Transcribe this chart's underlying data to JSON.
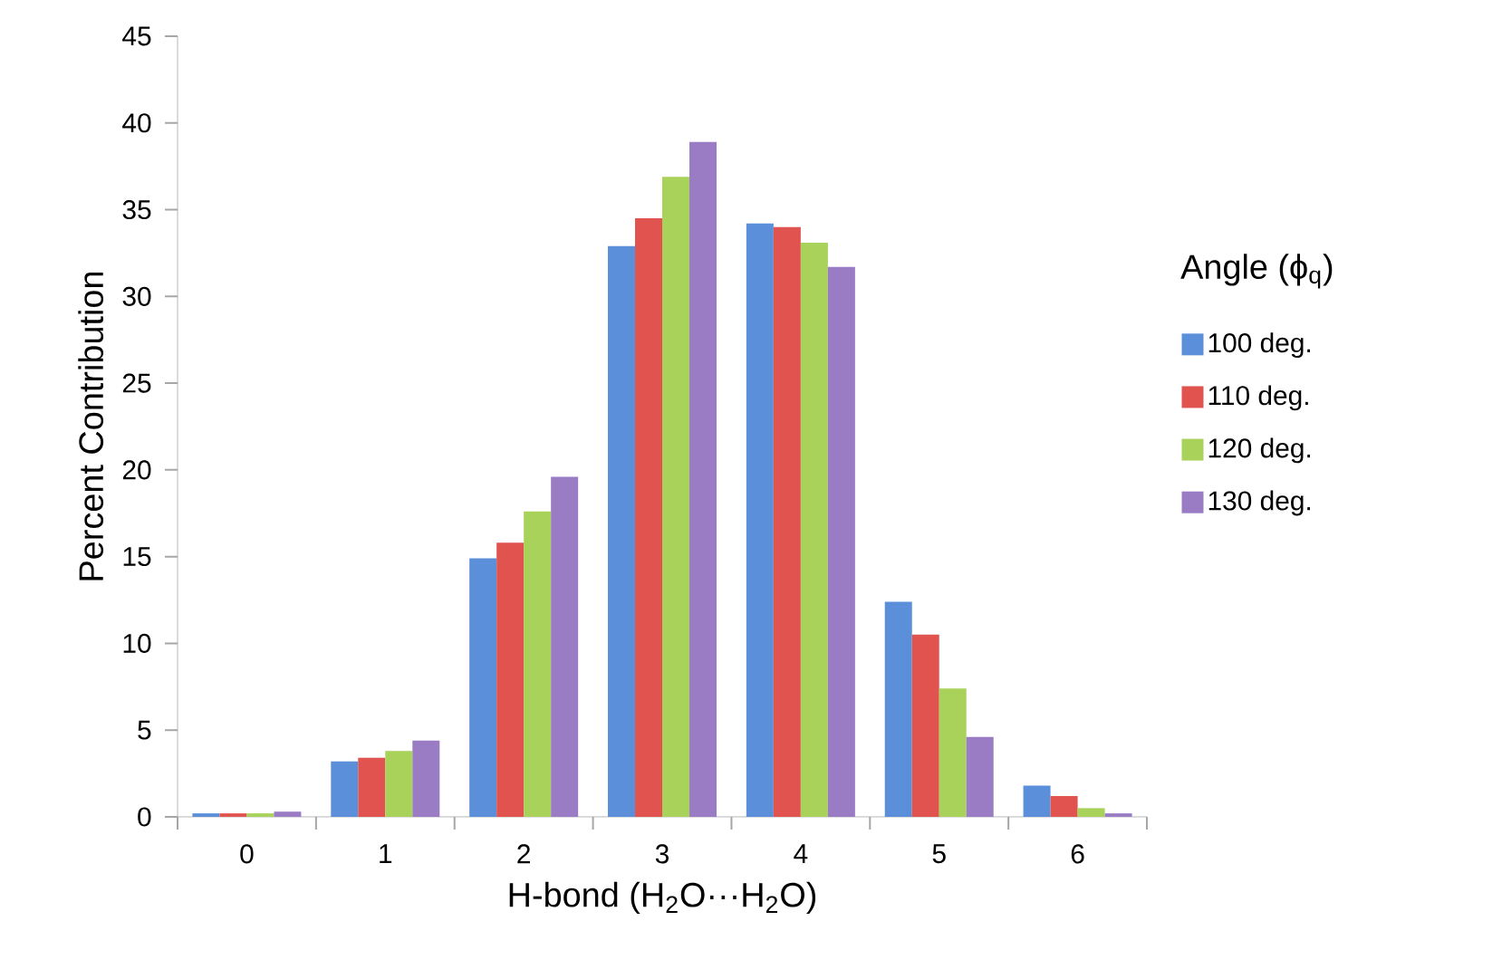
{
  "chart_data": {
    "type": "bar",
    "xlabel": "H-bond (H$_{2}$O···H$_{2}$O)",
    "ylabel": "Percent Contribution",
    "legend_title": "Angle (ϕ$_{q}$)",
    "categories": [
      "0",
      "1",
      "2",
      "3",
      "4",
      "5",
      "6"
    ],
    "series": [
      {
        "name": "100 deg.",
        "color": "#5b8fd9",
        "values": [
          0.2,
          3.2,
          14.9,
          32.9,
          34.2,
          12.4,
          1.8
        ]
      },
      {
        "name": "110 deg.",
        "color": "#e0534f",
        "values": [
          0.2,
          3.4,
          15.8,
          34.5,
          34.0,
          10.5,
          1.2
        ]
      },
      {
        "name": "120 deg.",
        "color": "#a8d25a",
        "values": [
          0.2,
          3.8,
          17.6,
          36.9,
          33.1,
          7.4,
          0.5
        ]
      },
      {
        "name": "130 deg.",
        "color": "#9a7cc4",
        "values": [
          0.3,
          4.4,
          19.6,
          38.9,
          31.7,
          4.6,
          0.2
        ]
      }
    ],
    "ylim": [
      0,
      45
    ],
    "yticks": [
      0,
      5,
      10,
      15,
      20,
      25,
      30,
      35,
      40,
      45
    ],
    "grid": false,
    "legend": "right"
  }
}
